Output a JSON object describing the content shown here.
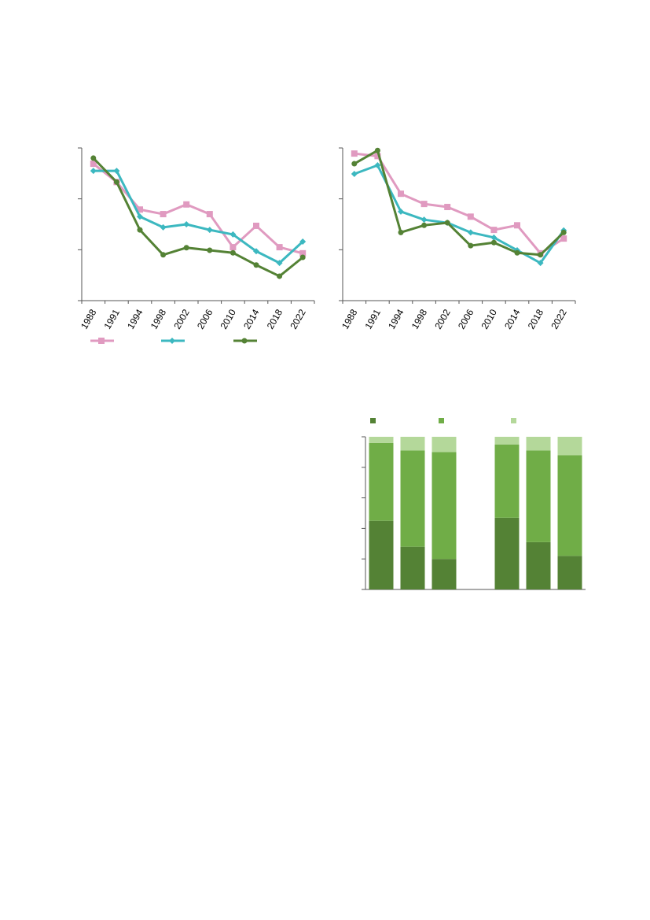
{
  "chart_data": [
    {
      "type": "line",
      "categories": [
        "1988",
        "1991",
        "1994",
        "1998",
        "2002",
        "2006",
        "2010",
        "2014",
        "2018",
        "2022"
      ],
      "ylim": [
        0,
        3
      ],
      "yticks": [
        0,
        1,
        2,
        3
      ],
      "series": [
        {
          "color": "#e09ac0",
          "marker": "square",
          "values": [
            2.69,
            2.33,
            1.79,
            1.7,
            1.89,
            1.7,
            1.05,
            1.47,
            1.05,
            0.93
          ]
        },
        {
          "color": "#3cb8c0",
          "marker": "diamond",
          "values": [
            2.55,
            2.55,
            1.65,
            1.44,
            1.5,
            1.39,
            1.3,
            0.97,
            0.74,
            1.16
          ]
        },
        {
          "color": "#548235",
          "marker": "circle",
          "values": [
            2.8,
            2.33,
            1.39,
            0.9,
            1.04,
            0.99,
            0.94,
            0.7,
            0.48,
            0.85
          ]
        }
      ]
    },
    {
      "type": "line",
      "categories": [
        "1988",
        "1991",
        "1994",
        "1998",
        "2002",
        "2006",
        "2010",
        "2014",
        "2018",
        "2022"
      ],
      "ylim": [
        0,
        3
      ],
      "yticks": [
        0,
        1,
        2,
        3
      ],
      "series": [
        {
          "color": "#e09ac0",
          "marker": "square",
          "values": [
            2.89,
            2.84,
            2.1,
            1.9,
            1.84,
            1.65,
            1.39,
            1.48,
            0.93,
            1.22
          ]
        },
        {
          "color": "#3cb8c0",
          "marker": "diamond",
          "values": [
            2.49,
            2.66,
            1.75,
            1.59,
            1.53,
            1.34,
            1.24,
            0.99,
            0.74,
            1.38
          ]
        },
        {
          "color": "#548235",
          "marker": "circle",
          "values": [
            2.69,
            2.95,
            1.34,
            1.48,
            1.53,
            1.08,
            1.14,
            0.94,
            0.9,
            1.34
          ]
        }
      ]
    },
    {
      "type": "stacked_bar",
      "categories": [
        null,
        null,
        null,
        null,
        null,
        null,
        null
      ],
      "ylim": [
        0,
        100
      ],
      "yticks": [
        0,
        20,
        40,
        60,
        80,
        100
      ],
      "series": [
        {
          "color": "#548235",
          "values": [
            45,
            28,
            20,
            null,
            47,
            31,
            22
          ]
        },
        {
          "color": "#70ad47",
          "values": [
            51,
            63,
            70,
            null,
            48,
            60,
            66
          ]
        },
        {
          "color": "#b4d89a",
          "values": [
            4,
            9,
            10,
            null,
            5,
            9,
            12
          ]
        }
      ]
    }
  ]
}
